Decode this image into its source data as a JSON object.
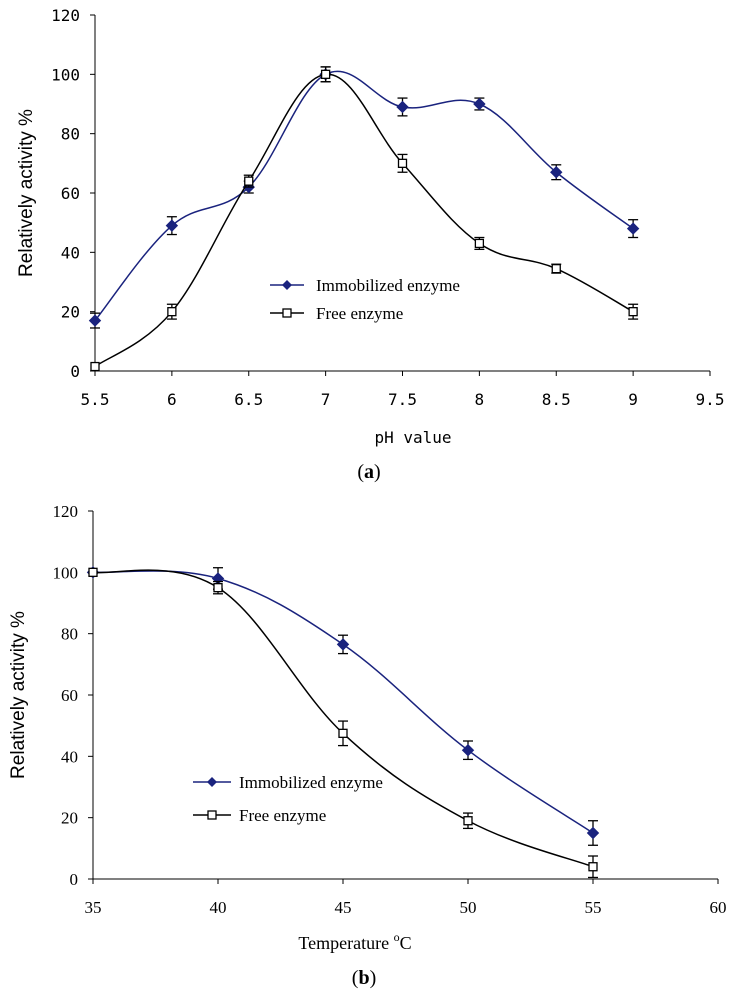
{
  "colors": {
    "immobilized": "#1a237e",
    "free": "#000000"
  },
  "chart_data": [
    {
      "type": "line",
      "panel_label": "(a)",
      "panel_label_open": "(",
      "panel_label_letter": "a",
      "panel_label_close": ")",
      "xlabel": "pH value",
      "ylabel": "Relatively activity %",
      "xlim": [
        5.5,
        9.5
      ],
      "ylim": [
        0,
        120
      ],
      "x_ticks": [
        "5.5",
        "6",
        "6.5",
        "7",
        "7.5",
        "8",
        "8.5",
        "9",
        "9.5"
      ],
      "y_ticks": [
        "0",
        "20",
        "40",
        "60",
        "80",
        "100",
        "120"
      ],
      "legend_position": "center-left",
      "series": [
        {
          "name": "Immobilized enzyme",
          "marker": "diamond",
          "x": [
            5.5,
            6,
            6.5,
            7,
            7.5,
            8,
            8.5,
            9
          ],
          "y": [
            17,
            49,
            62,
            100,
            89,
            90,
            67,
            48
          ],
          "err": [
            2.5,
            3,
            2,
            2.5,
            3,
            2,
            2.5,
            3
          ]
        },
        {
          "name": "Free enzyme",
          "marker": "square",
          "x": [
            5.5,
            6,
            6.5,
            7,
            7.5,
            8,
            8.5,
            9
          ],
          "y": [
            1.5,
            20,
            64,
            100,
            70,
            43,
            34.5,
            20
          ],
          "err": [
            0,
            2.5,
            2,
            2.5,
            3,
            2,
            1.5,
            2.5
          ]
        }
      ]
    },
    {
      "type": "line",
      "panel_label": "(b)",
      "panel_label_open": "(",
      "panel_label_letter": "b",
      "panel_label_close": ")",
      "xlabel": "Temperature °C",
      "xlabel_main": "Temperature ",
      "xlabel_sup": "o",
      "xlabel_unit": "C",
      "ylabel": "Relatively activity %",
      "xlim": [
        35,
        60
      ],
      "ylim": [
        0,
        120
      ],
      "x_ticks": [
        "35",
        "40",
        "45",
        "50",
        "55",
        "60"
      ],
      "y_ticks": [
        "0",
        "20",
        "40",
        "60",
        "80",
        "100",
        "120"
      ],
      "legend_position": "center-left",
      "series": [
        {
          "name": "Immobilized enzyme",
          "marker": "diamond",
          "x": [
            35,
            40,
            45,
            50,
            55
          ],
          "y": [
            100,
            98,
            76.5,
            42,
            15
          ],
          "err": [
            0,
            3.5,
            3,
            3,
            4
          ]
        },
        {
          "name": "Free enzyme",
          "marker": "square",
          "x": [
            35,
            40,
            45,
            50,
            55
          ],
          "y": [
            100,
            95,
            47.5,
            19,
            4
          ],
          "err": [
            0,
            2,
            4,
            2.5,
            3.5
          ]
        }
      ]
    }
  ]
}
